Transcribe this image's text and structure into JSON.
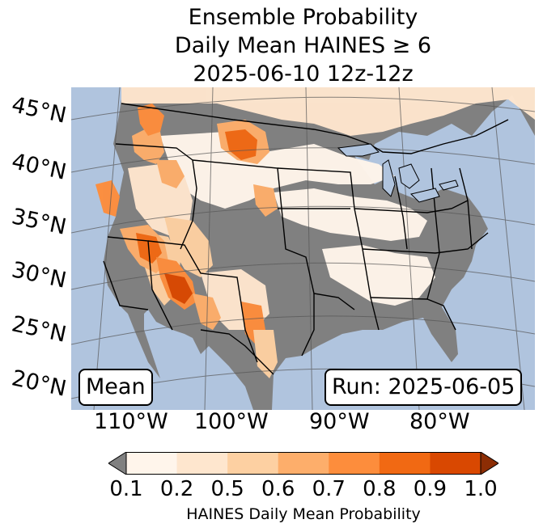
{
  "title": {
    "line1": "Ensemble Probability",
    "line2": "Daily Mean HAINES ≥ 6",
    "line3": "2025-06-10 12z-12z"
  },
  "map": {
    "statistic_label": "Mean",
    "run_label": "Run: 2025-06-05",
    "ocean_color": "#b0c4de",
    "no_data_color": "#808080",
    "latitude_labels": [
      "45°N",
      "40°N",
      "35°N",
      "30°N",
      "25°N",
      "20°N"
    ],
    "longitude_labels": [
      "110°W",
      "100°W",
      "90°W",
      "80°W"
    ]
  },
  "colorbar": {
    "label": "HAINES Daily Mean Probability",
    "tick_labels": [
      "0.1",
      "0.2",
      "0.5",
      "0.6",
      "0.7",
      "0.8",
      "0.9",
      "1.0"
    ],
    "under_color": "#808080",
    "over_color": "#8c2d04",
    "colors": [
      "#fff5eb",
      "#fee6ce",
      "#fdd0a2",
      "#fdae6b",
      "#fd8d3c",
      "#f16913",
      "#d94801"
    ]
  }
}
